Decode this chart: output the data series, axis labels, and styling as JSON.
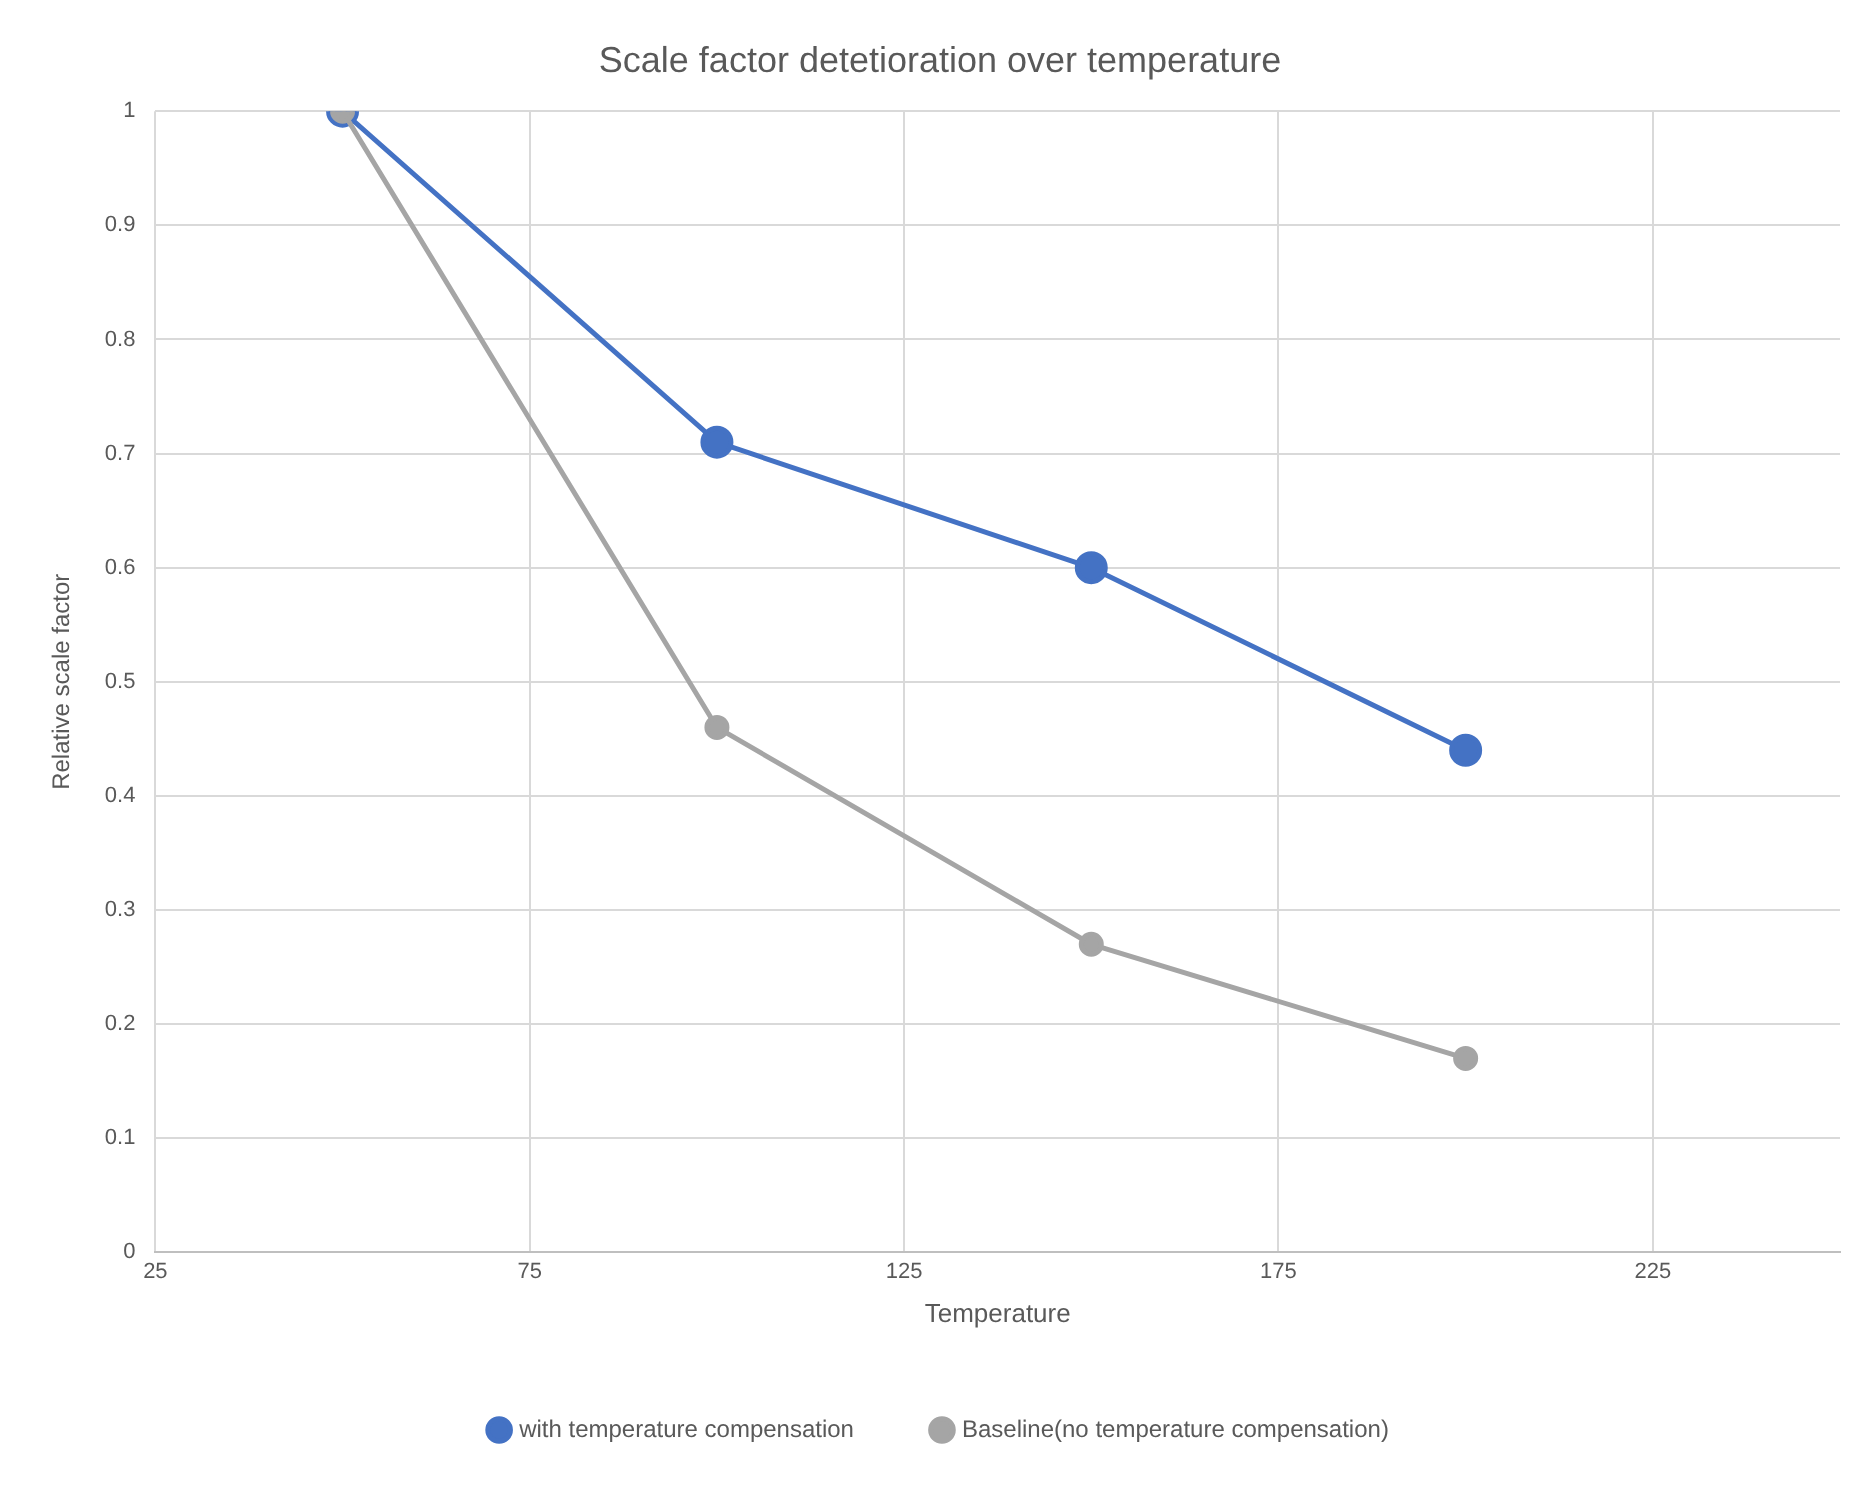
{
  "chart_data": {
    "type": "line",
    "title": "Scale factor detetioration over temperature",
    "xlabel": "Temperature",
    "ylabel": "Relative scale factor",
    "x": [
      50,
      100,
      150,
      200
    ],
    "series": [
      {
        "name": "with temperature compensation",
        "color": "#4472c4",
        "values": [
          1,
          0.71,
          0.6,
          0.44
        ]
      },
      {
        "name": "Baseline(no temperature compensation)",
        "color": "#a5a5a5",
        "values": [
          1,
          0.46,
          0.27,
          0.17
        ]
      }
    ],
    "xlim": [
      25,
      250
    ],
    "xticks": [
      25,
      75,
      125,
      175,
      225
    ],
    "ylim": [
      0,
      1
    ],
    "yticks": [
      0,
      0.1,
      0.2,
      0.3,
      0.4,
      0.5,
      0.6,
      0.7,
      0.8,
      0.9,
      1
    ],
    "grid": true,
    "legend": "bottom",
    "marker": "circle",
    "line_style": "solid"
  }
}
